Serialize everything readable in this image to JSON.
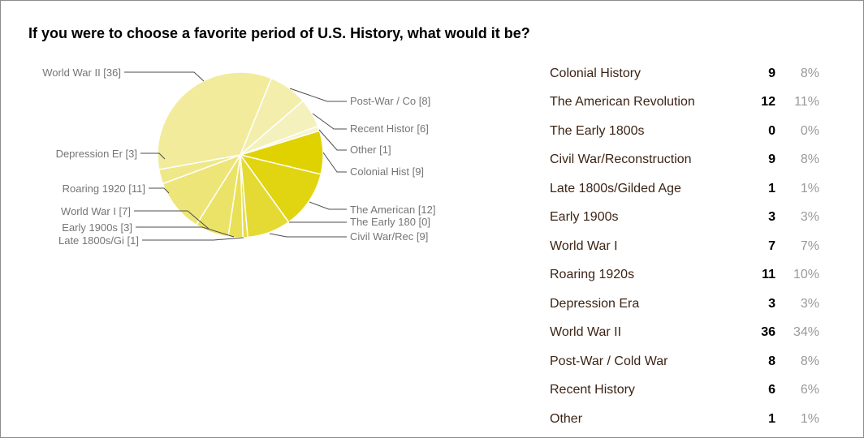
{
  "page": {
    "title": "If you were to choose a favorite period of U.S. History, what would it be?"
  },
  "colors": {
    "answer_label_text": "#3C2415",
    "count_text": "#000000",
    "percent_text": "#999999",
    "callout_text": "#757575",
    "leader_line": "#4D4D4D",
    "background": "#FFFFFF",
    "border": "#8C8C8C"
  },
  "chart_data": {
    "type": "pie",
    "title": "If you were to choose a favorite period of U.S. History, what would it be?",
    "legend_position": "none",
    "grid": false,
    "start_angle_deg": 73,
    "slices": [
      {
        "label": "Colonial History",
        "callout": "Colonial Hist [9]",
        "count": 9,
        "pct": "8%",
        "color": "#DFD200"
      },
      {
        "label": "The American Revolution",
        "callout": "The American [12]",
        "count": 12,
        "pct": "11%",
        "color": "#E1D511"
      },
      {
        "label": "The Early 1800s",
        "callout": "The Early 180 [0]",
        "count": 0,
        "pct": "0%",
        "color": "#E3D822"
      },
      {
        "label": "Civil War/Reconstruction",
        "callout": "Civil War/Rec [9]",
        "count": 9,
        "pct": "8%",
        "color": "#E5DA34"
      },
      {
        "label": "Late 1800s/Gilded Age",
        "callout": "Late 1800s/Gi [1]",
        "count": 1,
        "pct": "1%",
        "color": "#E7DD45"
      },
      {
        "label": "Early 1900s",
        "callout": "Early 1900s [3]",
        "count": 3,
        "pct": "3%",
        "color": "#E9E056"
      },
      {
        "label": "World War I",
        "callout": "World War I [7]",
        "count": 7,
        "pct": "7%",
        "color": "#EBE367"
      },
      {
        "label": "Roaring 1920s",
        "callout": "Roaring 1920 [11]",
        "count": 11,
        "pct": "10%",
        "color": "#EDE578"
      },
      {
        "label": "Depression Era",
        "callout": "Depression Er [3]",
        "count": 3,
        "pct": "3%",
        "color": "#EFE889"
      },
      {
        "label": "World War II",
        "callout": "World War II [36]",
        "count": 36,
        "pct": "34%",
        "color": "#F1EB9B"
      },
      {
        "label": "Post-War / Cold War",
        "callout": "Post-War / Co [8]",
        "count": 8,
        "pct": "8%",
        "color": "#F3EEAC"
      },
      {
        "label": "Recent History",
        "callout": "Recent Histor [6]",
        "count": 6,
        "pct": "6%",
        "color": "#F5F1BD"
      },
      {
        "label": "Other",
        "callout": "Other [1]",
        "count": 1,
        "pct": "1%",
        "color": "#F7F4CE"
      }
    ]
  }
}
